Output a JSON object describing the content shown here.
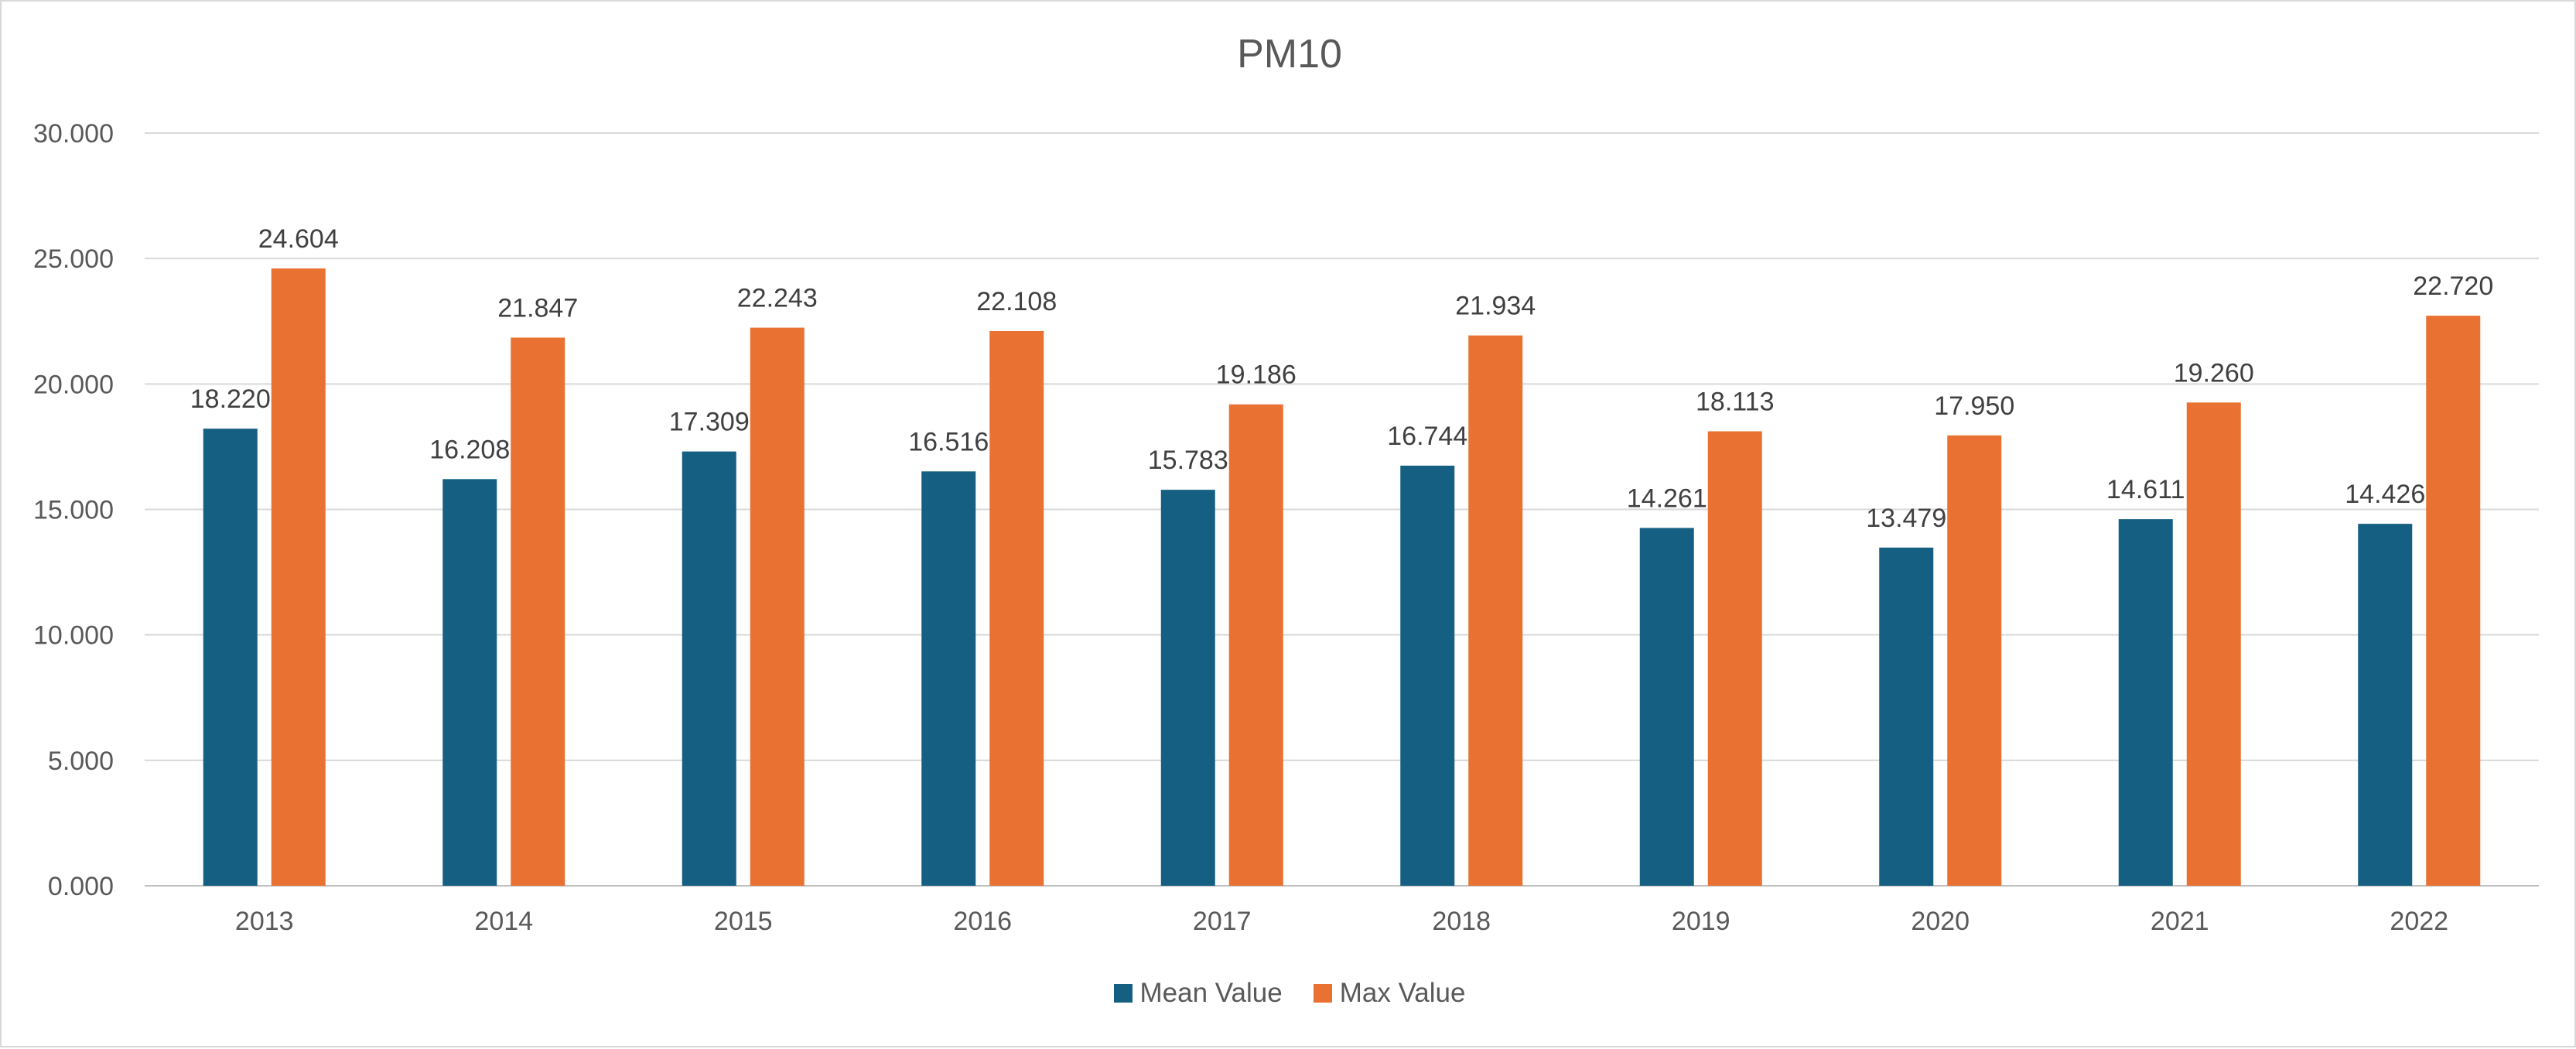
{
  "chart_data": {
    "type": "bar",
    "title": "PM10",
    "xlabel": "",
    "ylabel": "",
    "categories": [
      "2013",
      "2014",
      "2015",
      "2016",
      "2017",
      "2018",
      "2019",
      "2020",
      "2021",
      "2022"
    ],
    "series": [
      {
        "name": "Mean Value",
        "color": "#156082",
        "values": [
          18.22,
          16.208,
          17.309,
          16.516,
          15.783,
          16.744,
          14.261,
          13.479,
          14.611,
          14.426
        ],
        "labels": [
          "18.220",
          "16.208",
          "17.309",
          "16.516",
          "15.783",
          "16.744",
          "14.261",
          "13.479",
          "14.611",
          "14.426"
        ]
      },
      {
        "name": "Max Value",
        "color": "#E97132",
        "values": [
          24.604,
          21.847,
          22.243,
          22.108,
          19.186,
          21.934,
          18.113,
          17.95,
          19.26,
          22.72
        ],
        "labels": [
          "24.604",
          "21.847",
          "22.243",
          "22.108",
          "19.186",
          "21.934",
          "18.113",
          "17.950",
          "19.260",
          "22.720"
        ]
      }
    ],
    "ylim": [
      0,
      30
    ],
    "yticks": [
      0,
      5,
      10,
      15,
      20,
      25,
      30
    ],
    "ytick_labels": [
      "0.000",
      "5.000",
      "10.000",
      "15.000",
      "20.000",
      "25.000",
      "30.000"
    ],
    "grid": true,
    "legend_position": "bottom"
  }
}
